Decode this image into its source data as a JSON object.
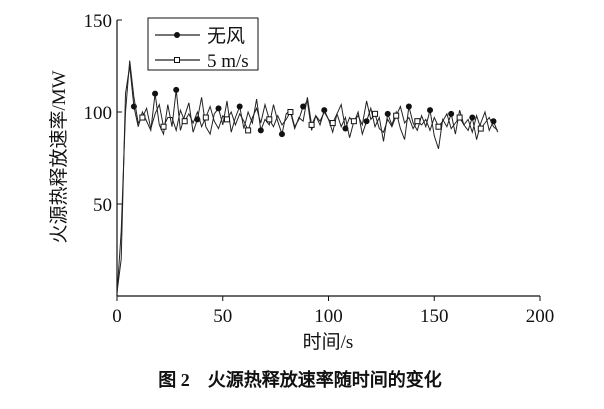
{
  "chart_data": {
    "type": "line",
    "caption": "图 2　火源热释放速率随时间的变化",
    "xlabel": "时间/s",
    "ylabel": "火源热释放速率/MW",
    "x": [
      0,
      2,
      4,
      6,
      8,
      10,
      12,
      14,
      16,
      18,
      20,
      22,
      24,
      26,
      28,
      30,
      32,
      34,
      36,
      38,
      40,
      42,
      44,
      46,
      48,
      50,
      52,
      54,
      56,
      58,
      60,
      62,
      64,
      66,
      68,
      70,
      72,
      74,
      76,
      78,
      80,
      82,
      84,
      86,
      88,
      90,
      92,
      94,
      96,
      98,
      100,
      102,
      104,
      106,
      108,
      110,
      112,
      114,
      116,
      118,
      120,
      122,
      124,
      126,
      128,
      130,
      132,
      134,
      136,
      138,
      140,
      142,
      144,
      146,
      148,
      150,
      152,
      154,
      156,
      158,
      160,
      162,
      164,
      166,
      168,
      170,
      172,
      174,
      176,
      178,
      180
    ],
    "series": [
      {
        "name": "无风",
        "color": "#222222",
        "marker": "circle",
        "values": [
          2,
          20,
          110,
          125,
          103,
          92,
          100,
          95,
          90,
          110,
          93,
          88,
          104,
          92,
          112,
          90,
          98,
          105,
          89,
          96,
          108,
          92,
          88,
          99,
          102,
          93,
          106,
          89,
          97,
          103,
          91,
          100,
          94,
          107,
          90,
          96,
          93,
          104,
          95,
          88,
          99,
          101,
          92,
          96,
          103,
          106,
          90,
          98,
          93,
          101,
          96,
          89,
          99,
          104,
          91,
          97,
          94,
          100,
          88,
          95,
          102,
          92,
          97,
          84,
          99,
          93,
          100,
          91,
          85,
          103,
          94,
          90,
          98,
          92,
          101,
          87,
          80,
          96,
          92,
          99,
          88,
          101,
          93,
          90,
          97,
          85,
          94,
          100,
          90,
          95,
          89
        ]
      },
      {
        "name": "5 m/s",
        "color": "#222222",
        "marker": "square",
        "values": [
          1,
          35,
          100,
          128,
          108,
          94,
          97,
          102,
          91,
          99,
          104,
          92,
          97,
          97,
          90,
          101,
          95,
          99,
          94,
          100,
          92,
          97,
          103,
          95,
          91,
          98,
          96,
          100,
          93,
          99,
          95,
          90,
          97,
          102,
          94,
          104,
          96,
          92,
          98,
          93,
          96,
          100,
          91,
          97,
          95,
          108,
          93,
          98,
          95,
          100,
          96,
          94,
          99,
          92,
          97,
          86,
          95,
          98,
          93,
          106,
          96,
          99,
          91,
          89,
          96,
          92,
          98,
          103,
          94,
          97,
          91,
          95,
          93,
          96,
          90,
          97,
          92,
          95,
          99,
          91,
          94,
          97,
          93,
          96,
          89,
          98,
          91,
          94,
          97,
          92,
          90
        ]
      }
    ],
    "xlim": [
      0,
      200
    ],
    "xticks": [
      0,
      50,
      100,
      150,
      200
    ],
    "ylim": [
      0,
      150
    ],
    "yticks": [
      50,
      100,
      150
    ],
    "legend": "upper left"
  }
}
